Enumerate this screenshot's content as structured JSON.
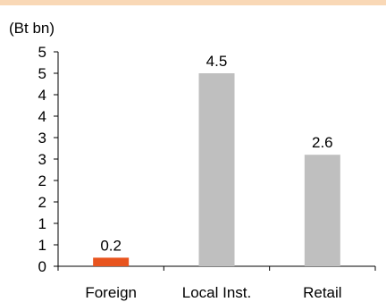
{
  "colors": {
    "top_band": "#f9d8b6",
    "highlight_bar": "#e8541e",
    "default_bar": "#bfbfbf",
    "axis": "#000000"
  },
  "chart_data": {
    "type": "bar",
    "unit_label": "(Bt bn)",
    "categories": [
      "Foreign",
      "Local Inst.",
      "Retail"
    ],
    "values": [
      0.2,
      4.5,
      2.6
    ],
    "data_labels": [
      "0.2",
      "4.5",
      "2.6"
    ],
    "highlight_index": 0,
    "y_ticks": [
      "0",
      "1",
      "1",
      "2",
      "2",
      "3",
      "3",
      "4",
      "4",
      "5",
      "5"
    ],
    "ylim": [
      0,
      5.0
    ],
    "grid": false,
    "legend": "none"
  }
}
